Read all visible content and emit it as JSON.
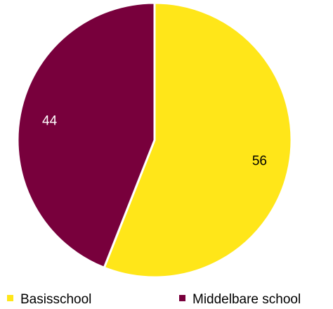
{
  "chart_data": {
    "type": "pie",
    "slices": [
      {
        "label": "Basisschool",
        "value": 56,
        "value_label": "56",
        "color": "#FFE619",
        "label_color": "#000000"
      },
      {
        "label": "Middelbare school",
        "value": 44,
        "value_label": "44",
        "color": "#78003C",
        "label_color": "#FFFFFF"
      }
    ],
    "start": "12 o'clock, clockwise",
    "legend_position": "bottom"
  }
}
